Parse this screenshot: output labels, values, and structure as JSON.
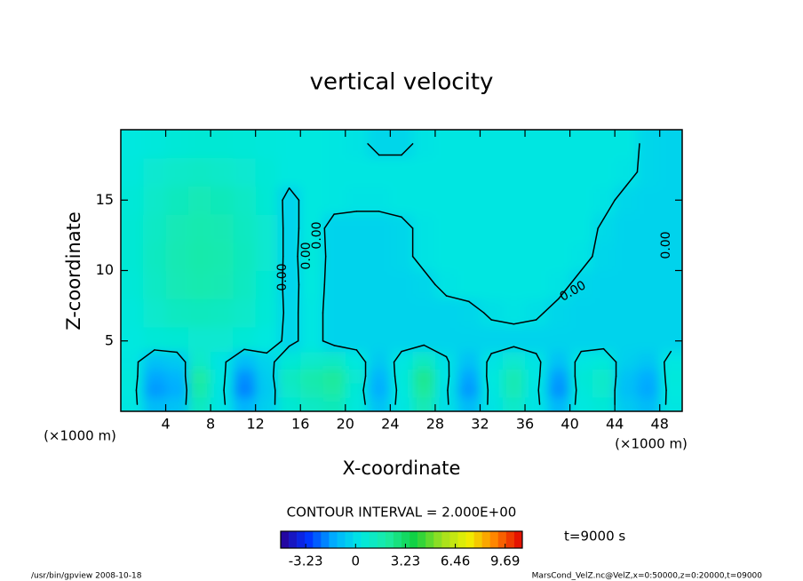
{
  "chart_data": {
    "type": "contour",
    "title": "vertical velocity",
    "x_label": "X-coordinate",
    "y_label": "Z-coordinate",
    "x_unit": "(×1000 m)",
    "xlim": [
      0,
      50
    ],
    "xticks": [
      4,
      8,
      12,
      16,
      20,
      24,
      28,
      32,
      36,
      40,
      44,
      48
    ],
    "ylim": [
      0,
      20
    ],
    "yticks": [
      5,
      10,
      15
    ],
    "x": [
      1,
      3,
      5,
      7,
      9,
      11,
      13,
      15,
      17,
      19,
      21,
      23,
      25,
      27,
      29,
      31,
      33,
      35,
      37,
      39,
      41,
      43,
      45,
      47,
      49
    ],
    "z": [
      0.5,
      1.5,
      2.5,
      3.5,
      5,
      7,
      9,
      11,
      13,
      15,
      17,
      19
    ],
    "values": [
      [
        0.3,
        -1.0,
        -0.8,
        1.2,
        0.2,
        -1.2,
        -0.4,
        0.7,
        1.1,
        1.4,
        0.5,
        -0.8,
        0.3,
        1.5,
        0.1,
        -1.0,
        0.2,
        1.0,
        0.2,
        -1.1,
        0.4,
        0.6,
        -0.6,
        -1.0,
        0.3
      ],
      [
        0.4,
        -1.7,
        -1.4,
        1.8,
        0.2,
        -2.0,
        -0.6,
        1.0,
        1.6,
        2.0,
        0.6,
        -1.4,
        0.4,
        2.2,
        0.1,
        -1.7,
        0.3,
        1.5,
        0.2,
        -1.8,
        0.5,
        0.9,
        -0.9,
        -1.5,
        0.4
      ],
      [
        0.5,
        -1.5,
        -1.2,
        2.0,
        0.3,
        -1.8,
        -0.5,
        1.2,
        1.8,
        2.2,
        0.8,
        -1.2,
        0.5,
        2.4,
        0.2,
        -1.5,
        0.4,
        1.6,
        0.3,
        -1.6,
        0.6,
        1.0,
        -0.8,
        -1.4,
        0.5
      ],
      [
        0.3,
        -0.8,
        -0.6,
        1.0,
        0.2,
        -0.9,
        -0.3,
        0.6,
        0.9,
        1.1,
        0.4,
        -0.6,
        0.3,
        1.2,
        0.1,
        -0.8,
        0.2,
        0.8,
        0.2,
        -0.8,
        0.3,
        0.5,
        -0.4,
        -0.7,
        0.3
      ],
      [
        0.4,
        0.6,
        0.7,
        0.8,
        0.8,
        0.6,
        0.4,
        -0.2,
        0.3,
        -0.3,
        -0.3,
        -0.3,
        -0.3,
        -0.3,
        -0.3,
        -0.3,
        -0.3,
        -0.3,
        -0.3,
        -0.3,
        -0.3,
        -0.3,
        -0.3,
        -0.3,
        -0.3
      ],
      [
        0.5,
        0.9,
        1.2,
        1.3,
        1.2,
        1.0,
        0.6,
        -0.2,
        0.3,
        -0.3,
        -0.3,
        -0.3,
        -0.3,
        -0.3,
        -0.3,
        -0.2,
        0.1,
        0.2,
        0.1,
        -0.2,
        -0.3,
        -0.3,
        -0.3,
        -0.3,
        -0.3
      ],
      [
        0.6,
        1.1,
        1.5,
        1.7,
        1.6,
        1.2,
        0.7,
        -0.3,
        0.4,
        -0.3,
        -0.3,
        -0.3,
        -0.3,
        -0.2,
        0.2,
        0.3,
        0.3,
        0.3,
        0.3,
        0.2,
        -0.2,
        -0.3,
        -0.3,
        -0.3,
        -0.3
      ],
      [
        0.7,
        1.2,
        1.6,
        1.8,
        1.7,
        1.3,
        0.8,
        -0.3,
        0.5,
        -0.3,
        -0.3,
        -0.3,
        -0.2,
        0.2,
        0.3,
        0.3,
        0.3,
        0.3,
        0.3,
        0.3,
        0.2,
        -0.2,
        -0.3,
        -0.3,
        -0.3
      ],
      [
        0.7,
        1.1,
        1.5,
        1.7,
        1.6,
        1.2,
        0.8,
        -0.3,
        0.4,
        -0.3,
        -0.3,
        -0.3,
        -0.2,
        0.2,
        0.3,
        0.3,
        0.3,
        0.3,
        0.3,
        0.3,
        0.3,
        -0.1,
        -0.3,
        -0.3,
        -0.3
      ],
      [
        0.6,
        1.0,
        1.3,
        1.5,
        1.4,
        1.1,
        0.7,
        -0.3,
        0.4,
        0.3,
        0.2,
        0.2,
        0.3,
        0.3,
        0.3,
        0.3,
        0.3,
        0.3,
        0.3,
        0.3,
        0.3,
        0.2,
        -0.2,
        -0.3,
        -0.3
      ],
      [
        0.5,
        0.8,
        1.0,
        1.1,
        1.0,
        0.8,
        0.6,
        0.4,
        0.4,
        0.3,
        0.3,
        0.3,
        0.3,
        0.3,
        0.3,
        0.3,
        0.3,
        0.3,
        0.3,
        0.3,
        0.3,
        0.3,
        0.2,
        -0.2,
        -0.3
      ],
      [
        0.4,
        0.5,
        0.6,
        0.7,
        0.7,
        0.6,
        0.5,
        0.4,
        0.4,
        0.3,
        0.2,
        -0.2,
        -0.2,
        0.2,
        0.3,
        0.3,
        0.3,
        0.3,
        0.3,
        0.3,
        0.3,
        0.3,
        0.3,
        -0.2,
        -0.3
      ]
    ],
    "contour_levels": [
      0
    ],
    "contour_label": "0.00",
    "contour_interval_text": "CONTOUR INTERVAL = 2.000E+00",
    "clim": [
      -4.85,
      10.8
    ],
    "colors": [
      "#2a0090",
      "#0030ff",
      "#00b0ff",
      "#00e8e0",
      "#1ceaa0",
      "#10d040",
      "#a0e020",
      "#f0f000",
      "#ff8000",
      "#e00000"
    ],
    "colorbar_ticks": [
      -3.23,
      0,
      3.23,
      6.46,
      9.69
    ],
    "time_label": "t=9000 s",
    "footer_left": "/usr/bin/gpview  2008-10-18",
    "footer_right": "MarsCond_VelZ.nc@VelZ,x=0:50000,z=0:20000,t=09000"
  }
}
